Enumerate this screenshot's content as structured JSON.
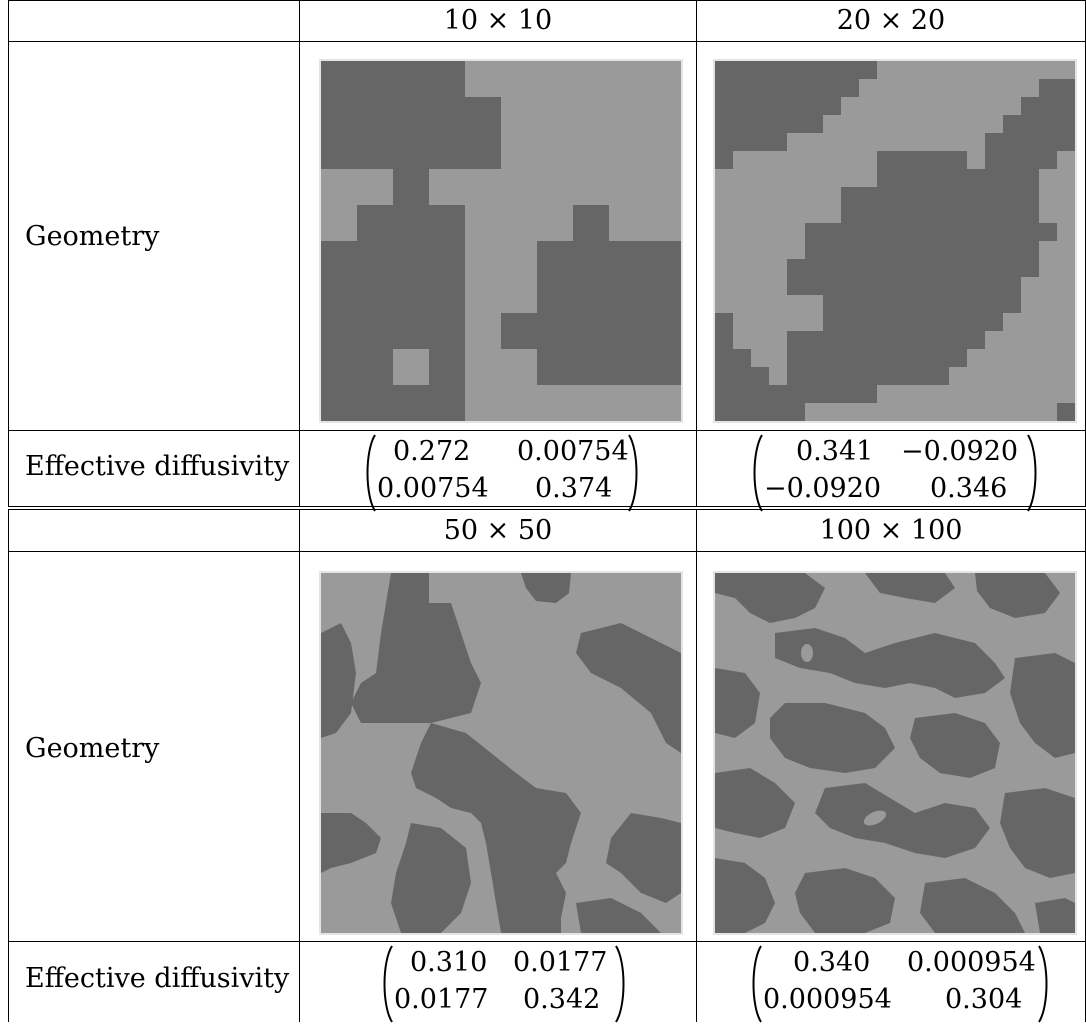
{
  "tables": [
    {
      "headers": [
        "10 × 10",
        "20 × 20"
      ],
      "row_labels": {
        "geometry": "Geometry",
        "diffusivity": "Effective diffusivity"
      },
      "matrices": [
        {
          "a11": "0.272",
          "a12": "0.00754",
          "a21": "0.00754",
          "a22": "0.374"
        },
        {
          "a11": "0.341",
          "a12": "−0.0920",
          "a21": "−0.0920",
          "a22": "0.346"
        }
      ]
    },
    {
      "headers": [
        "50 × 50",
        "100 × 100"
      ],
      "row_labels": {
        "geometry": "Geometry",
        "diffusivity": "Effective diffusivity"
      },
      "matrices": [
        {
          "a11": "0.310",
          "a12": "0.0177",
          "a21": "0.0177",
          "a22": "0.342"
        },
        {
          "a11": "0.340",
          "a12": "0.000954",
          "a21": "0.000954",
          "a22": "0.304"
        }
      ]
    }
  ],
  "colors": {
    "dark_phase": "#666666",
    "light_phase": "#9a9a9a",
    "frame": "#e4e4e4"
  },
  "geometry_grids": {
    "g10": [
      "DDDDLLLLLL",
      "DDDDDLLLLL",
      "DDDDDLLLLL",
      "LLDLLLLLLL",
      "LDDDLLLDLL",
      "DDDDLLDDDD",
      "DDDDLLDDDD",
      "DDDDLDDDDD",
      "DDLDLLDDDD",
      "DDDDLLLLLL"
    ],
    "g20": [
      "DDDDDDDDDLLLLLLLLLLL",
      "DDDDDDDDLLLLLLLLLLDD",
      "DDDDDDDLLLLLLLLLLDDD",
      "DDDDDDLLLLLLLLLLDDDD",
      "DDDDLLLLLLLLLLLDDDDD",
      "DLLLLLLLLDDDDDLDDDDL",
      "LLLLLLLLLDDDDDDDDDLL",
      "LLLLLLLDDDDDDDDDDDLL",
      "LLLLLLLDDDDDDDDDDDLL",
      "LLLLLDDDDDDDDDDDDDDL",
      "LLLLLDDDDDDDDDDDDDLL",
      "LLLLDDDDDDDDDDDDDDLL",
      "LLLLDDDDDDDDDDDDDLLL",
      "LLLLLLDDDDDDDDDDDLLL",
      "DLLLLLDDDDDDDDDDLLLL",
      "DLLLDDDDDDDDDDDLLLLL",
      "DDLLDDDDDDDDDDLLLLLL",
      "DDDLDDDDDDDDDLLLLLLL",
      "DDDDDDDDDLLLLLLLLLLL",
      "DDDDDLLLLLLLLLLLLLLD"
    ]
  }
}
